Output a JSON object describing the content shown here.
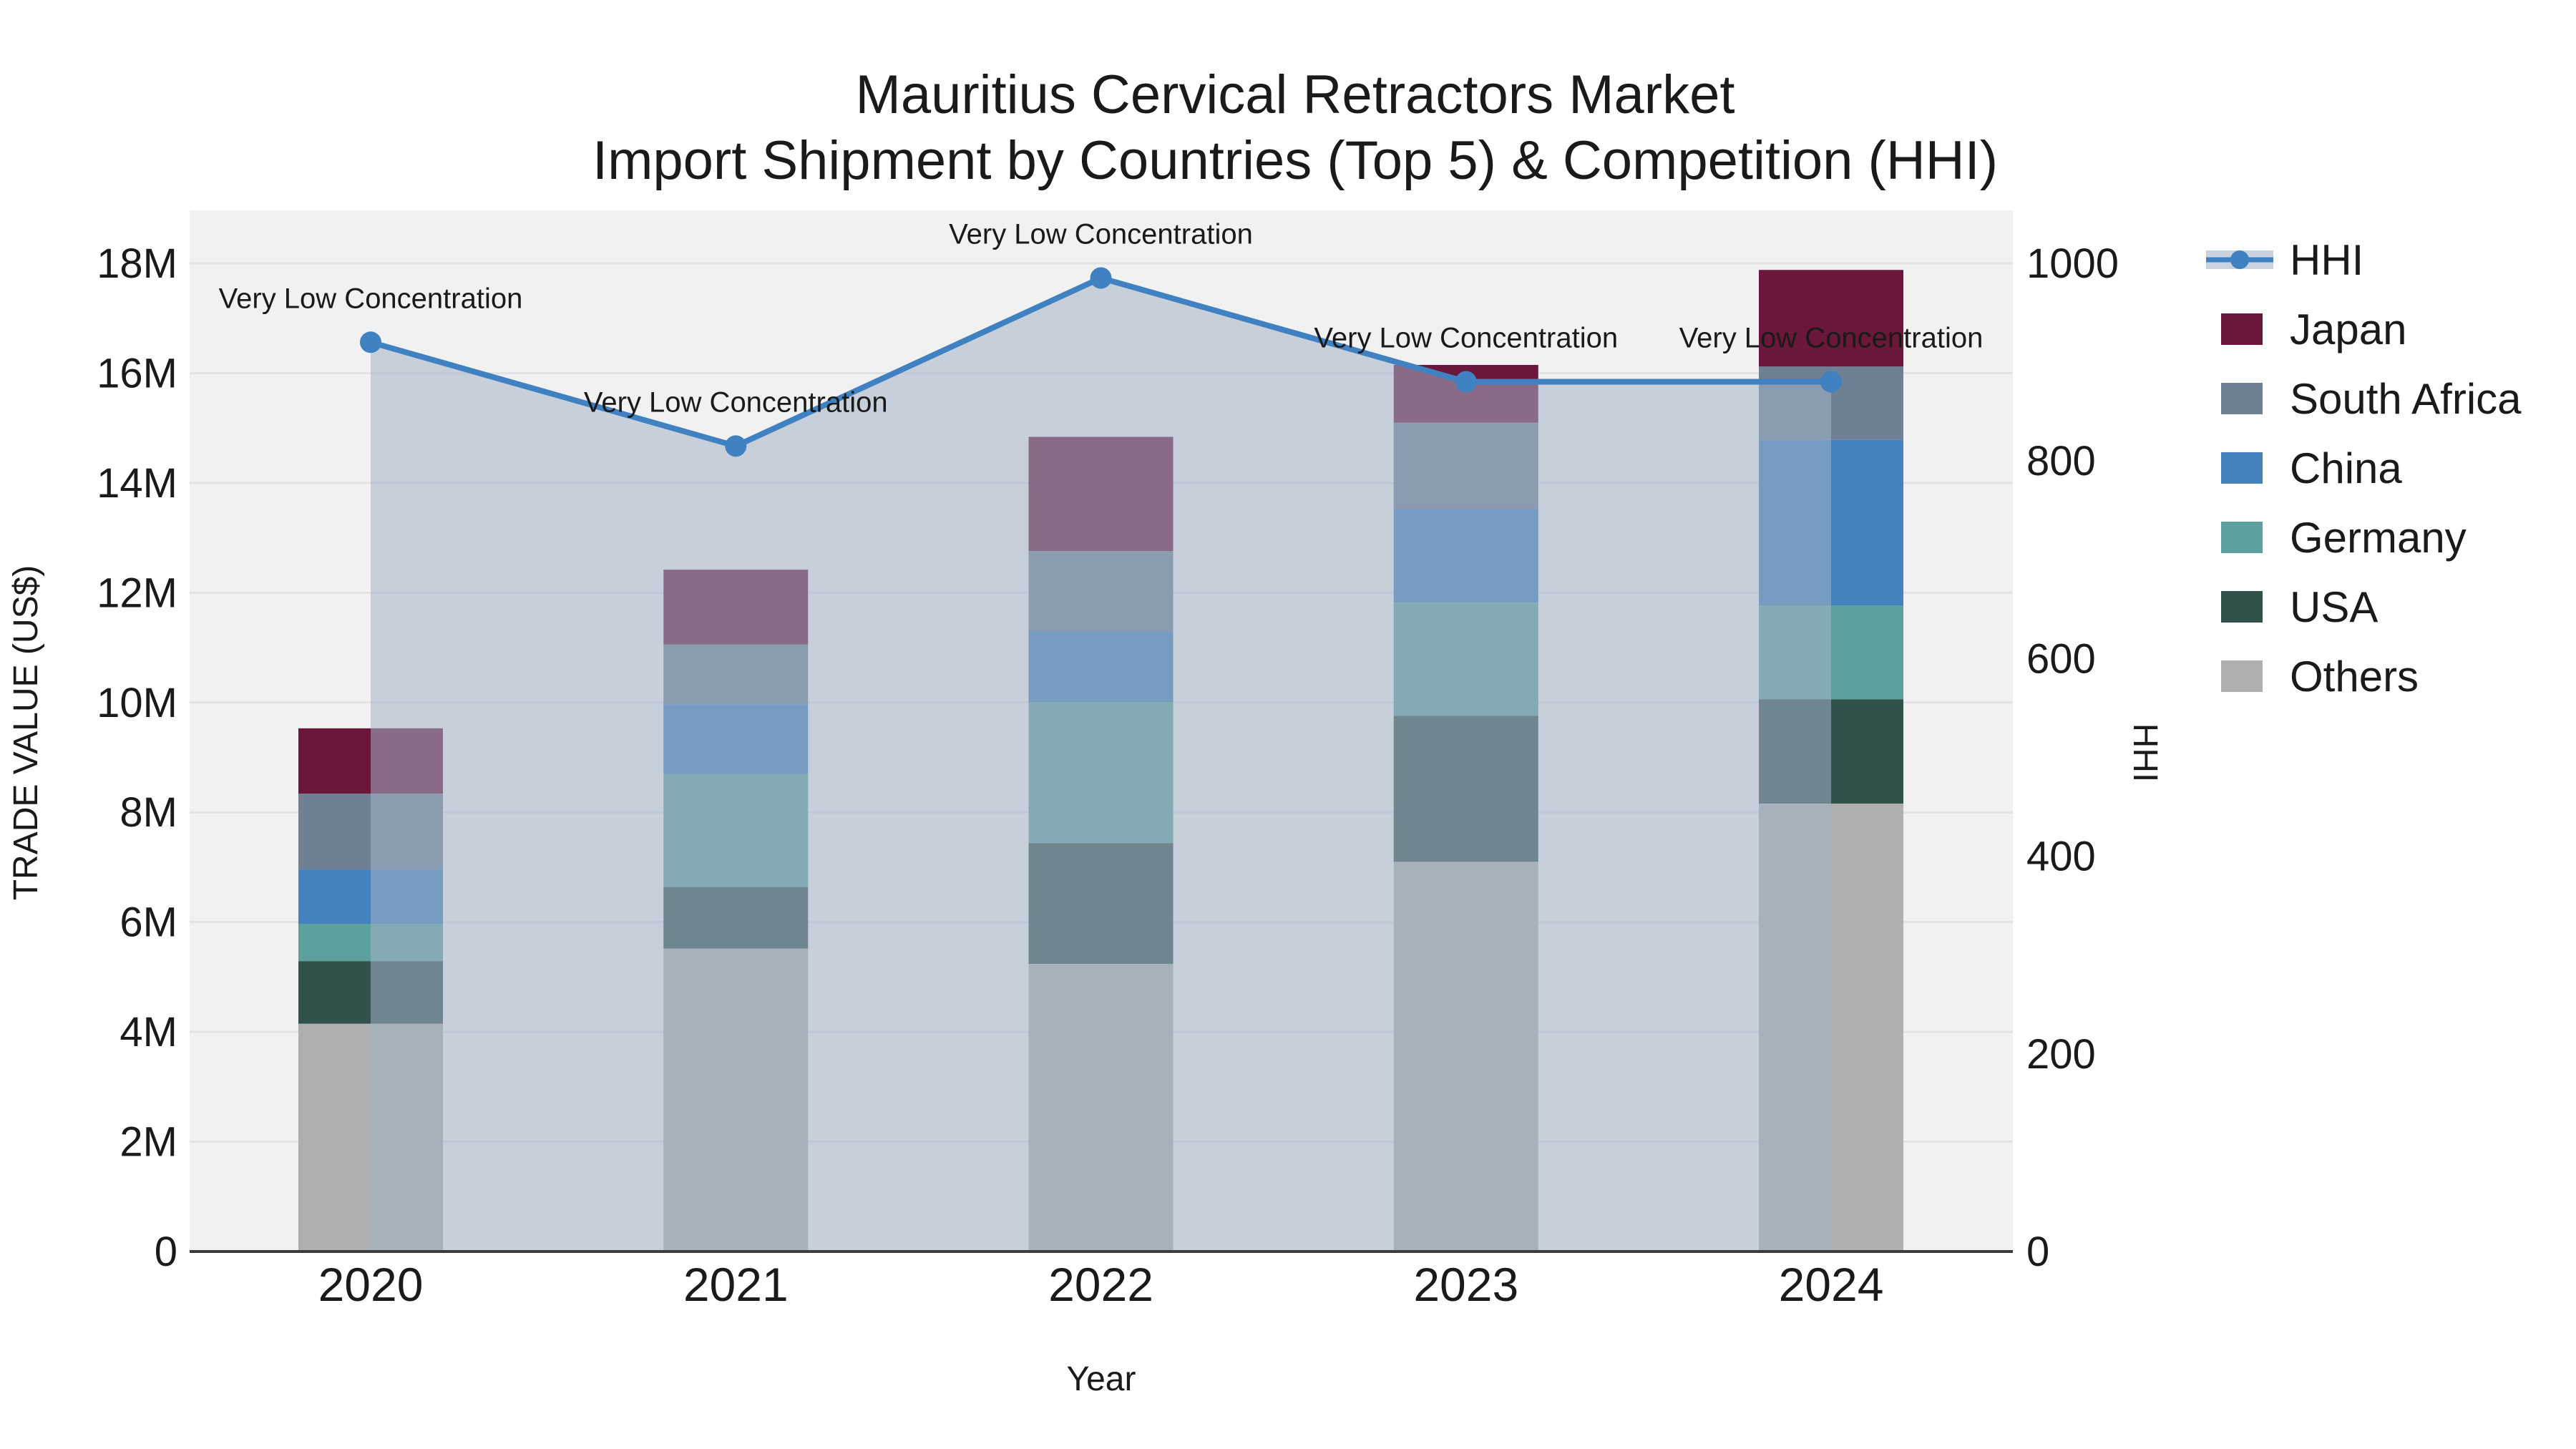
{
  "title": {
    "line1": "Mauritius Cervical Retractors Market",
    "line2": "Import Shipment by Countries (Top 5) & Competition (HHI)"
  },
  "chart_data": {
    "type": "combo_stacked_bar_line",
    "categories": [
      "2020",
      "2021",
      "2022",
      "2023",
      "2024"
    ],
    "xlabel": "Year",
    "ylabel_left": "TRADE VALUE (US$)",
    "ylabel_right": "HHI",
    "y_left": {
      "unit": "million US$",
      "min": 0,
      "max": 18,
      "tick_step_m": 2,
      "tick_labels": [
        "0",
        "2M",
        "4M",
        "6M",
        "8M",
        "10M",
        "12M",
        "14M",
        "16M",
        "18M"
      ]
    },
    "y_right": {
      "min": 0,
      "max": 1000,
      "tick_step": 200,
      "tick_labels": [
        "0",
        "200",
        "400",
        "600",
        "800",
        "1000"
      ]
    },
    "series": [
      {
        "key": "others",
        "name": "Others",
        "color": "#aeafae",
        "values_m": [
          4.15,
          5.52,
          5.24,
          7.1,
          8.16
        ]
      },
      {
        "key": "usa",
        "name": "USA",
        "color": "#31514b",
        "values_m": [
          1.14,
          1.12,
          2.2,
          2.66,
          1.9
        ]
      },
      {
        "key": "germany",
        "name": "Germany",
        "color": "#5da19f",
        "values_m": [
          0.68,
          2.06,
          2.57,
          2.06,
          1.71
        ]
      },
      {
        "key": "china",
        "name": "China",
        "color": "#4382bd",
        "values_m": [
          0.99,
          1.27,
          1.29,
          1.71,
          3.02
        ]
      },
      {
        "key": "south_africa",
        "name": "South Africa",
        "color": "#708094",
        "values_m": [
          1.38,
          1.09,
          1.46,
          1.57,
          1.33
        ]
      },
      {
        "key": "japan",
        "name": "Japan",
        "color": "#6b163b",
        "values_m": [
          1.19,
          1.36,
          2.08,
          1.05,
          1.76
        ]
      }
    ],
    "stack_totals_m": [
      9.53,
      12.42,
      14.84,
      16.15,
      17.88
    ],
    "hhi": {
      "name": "HHI",
      "line_color": "#3f81c1",
      "fill_color": "#a3b2c7",
      "fill_opacity": 0.55,
      "legend_band_color": "#c9d2de",
      "values": [
        920,
        815,
        985,
        880,
        880
      ]
    },
    "annotations": [
      "Very Low Concentration",
      "Very Low Concentration",
      "Very Low Concentration",
      "Very Low Concentration",
      "Very Low Concentration"
    ],
    "legend": {
      "position": "right",
      "order": [
        "HHI",
        "Japan",
        "South Africa",
        "China",
        "Germany",
        "USA",
        "Others"
      ]
    },
    "colors": {
      "plot_background": "#f1f1f2",
      "gridline": "#e3e3e5",
      "axis_line": "#3c3c3c",
      "page_background": "#ffffff"
    }
  }
}
